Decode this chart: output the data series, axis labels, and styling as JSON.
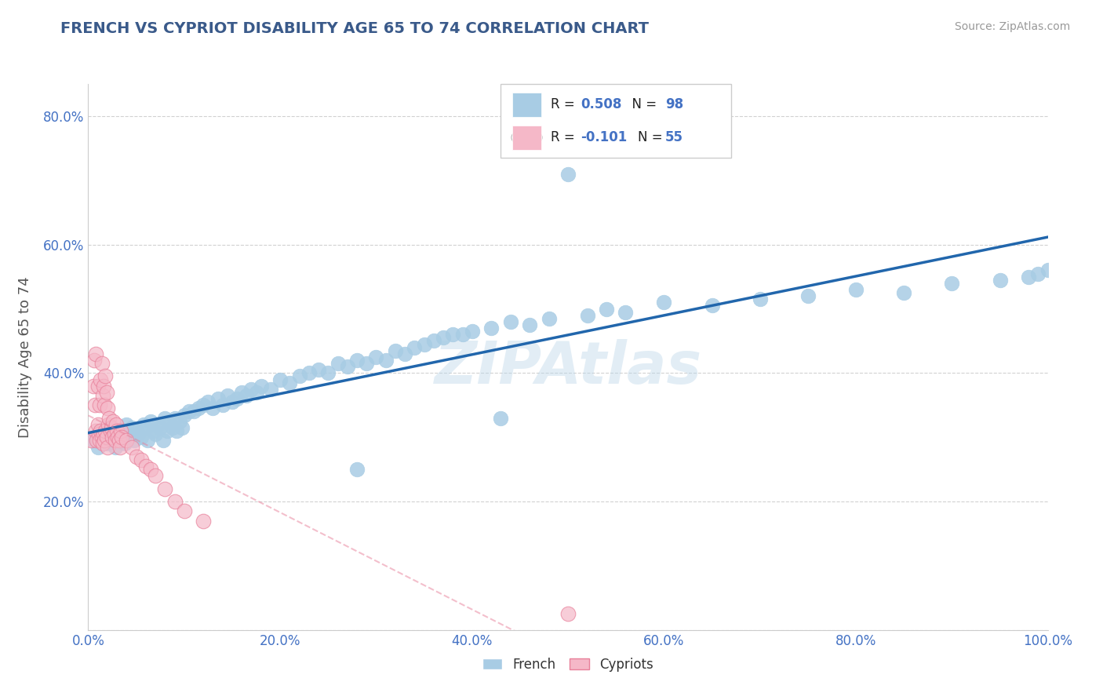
{
  "title": "FRENCH VS CYPRIOT DISABILITY AGE 65 TO 74 CORRELATION CHART",
  "source_text": "Source: ZipAtlas.com",
  "ylabel": "Disability Age 65 to 74",
  "watermark": "ZIPAtlas",
  "xlim": [
    0.0,
    1.0
  ],
  "ylim": [
    0.0,
    0.85
  ],
  "xticks": [
    0.0,
    0.2,
    0.4,
    0.6,
    0.8,
    1.0
  ],
  "xtick_labels": [
    "0.0%",
    "20.0%",
    "40.0%",
    "60.0%",
    "80.0%",
    "100.0%"
  ],
  "yticks": [
    0.0,
    0.2,
    0.4,
    0.6,
    0.8
  ],
  "ytick_labels": [
    "",
    "20.0%",
    "40.0%",
    "60.0%",
    "80.0%"
  ],
  "french_color": "#a8cce4",
  "cypriot_color": "#f5b8c8",
  "cypriot_edge_color": "#e8809a",
  "french_line_color": "#2166ac",
  "cypriot_line_color": "#e8809a",
  "legend_R_french": "R = 0.508",
  "legend_N_french": "N = 98",
  "legend_R_cypriot": "R = -0.101",
  "legend_N_cypriot": "N = 55",
  "title_color": "#3a5a8a",
  "axis_label_color": "#555555",
  "tick_label_color": "#4472c4",
  "grid_color": "#cccccc",
  "background_color": "#ffffff",
  "french_x": [
    0.005,
    0.008,
    0.01,
    0.012,
    0.015,
    0.018,
    0.02,
    0.022,
    0.025,
    0.028,
    0.03,
    0.032,
    0.035,
    0.038,
    0.04,
    0.042,
    0.045,
    0.048,
    0.05,
    0.052,
    0.055,
    0.058,
    0.06,
    0.062,
    0.065,
    0.068,
    0.07,
    0.072,
    0.075,
    0.078,
    0.08,
    0.082,
    0.085,
    0.088,
    0.09,
    0.092,
    0.095,
    0.098,
    0.1,
    0.105,
    0.11,
    0.115,
    0.12,
    0.125,
    0.13,
    0.135,
    0.14,
    0.145,
    0.15,
    0.155,
    0.16,
    0.165,
    0.17,
    0.175,
    0.18,
    0.19,
    0.2,
    0.21,
    0.22,
    0.23,
    0.24,
    0.25,
    0.26,
    0.27,
    0.28,
    0.29,
    0.3,
    0.31,
    0.32,
    0.33,
    0.34,
    0.35,
    0.36,
    0.37,
    0.38,
    0.39,
    0.4,
    0.42,
    0.44,
    0.46,
    0.48,
    0.5,
    0.52,
    0.54,
    0.56,
    0.6,
    0.65,
    0.7,
    0.75,
    0.8,
    0.85,
    0.9,
    0.95,
    0.98,
    0.99,
    1.0,
    0.43,
    0.28
  ],
  "french_y": [
    0.295,
    0.3,
    0.285,
    0.31,
    0.295,
    0.305,
    0.29,
    0.315,
    0.3,
    0.285,
    0.31,
    0.295,
    0.305,
    0.29,
    0.32,
    0.3,
    0.315,
    0.295,
    0.31,
    0.305,
    0.3,
    0.32,
    0.315,
    0.295,
    0.325,
    0.31,
    0.305,
    0.32,
    0.315,
    0.295,
    0.33,
    0.31,
    0.325,
    0.315,
    0.33,
    0.31,
    0.325,
    0.315,
    0.335,
    0.34,
    0.34,
    0.345,
    0.35,
    0.355,
    0.345,
    0.36,
    0.35,
    0.365,
    0.355,
    0.36,
    0.37,
    0.365,
    0.375,
    0.37,
    0.38,
    0.375,
    0.39,
    0.385,
    0.395,
    0.4,
    0.405,
    0.4,
    0.415,
    0.41,
    0.42,
    0.415,
    0.425,
    0.42,
    0.435,
    0.43,
    0.44,
    0.445,
    0.45,
    0.455,
    0.46,
    0.46,
    0.465,
    0.47,
    0.48,
    0.475,
    0.485,
    0.71,
    0.49,
    0.5,
    0.495,
    0.51,
    0.505,
    0.515,
    0.52,
    0.53,
    0.525,
    0.54,
    0.545,
    0.55,
    0.555,
    0.56,
    0.33,
    0.25
  ],
  "cypriot_x": [
    0.003,
    0.005,
    0.006,
    0.007,
    0.008,
    0.008,
    0.009,
    0.01,
    0.01,
    0.011,
    0.012,
    0.012,
    0.013,
    0.013,
    0.014,
    0.014,
    0.015,
    0.015,
    0.016,
    0.016,
    0.017,
    0.017,
    0.018,
    0.018,
    0.019,
    0.019,
    0.02,
    0.02,
    0.021,
    0.022,
    0.023,
    0.024,
    0.025,
    0.026,
    0.027,
    0.028,
    0.029,
    0.03,
    0.031,
    0.032,
    0.033,
    0.034,
    0.035,
    0.04,
    0.045,
    0.05,
    0.055,
    0.06,
    0.065,
    0.07,
    0.08,
    0.09,
    0.1,
    0.12,
    0.5
  ],
  "cypriot_y": [
    0.295,
    0.38,
    0.42,
    0.35,
    0.31,
    0.43,
    0.295,
    0.32,
    0.38,
    0.305,
    0.295,
    0.35,
    0.31,
    0.39,
    0.3,
    0.415,
    0.29,
    0.365,
    0.305,
    0.38,
    0.295,
    0.35,
    0.31,
    0.395,
    0.3,
    0.37,
    0.285,
    0.345,
    0.32,
    0.33,
    0.31,
    0.315,
    0.3,
    0.325,
    0.305,
    0.295,
    0.32,
    0.31,
    0.3,
    0.295,
    0.285,
    0.31,
    0.3,
    0.295,
    0.285,
    0.27,
    0.265,
    0.255,
    0.25,
    0.24,
    0.22,
    0.2,
    0.185,
    0.17,
    0.025
  ]
}
